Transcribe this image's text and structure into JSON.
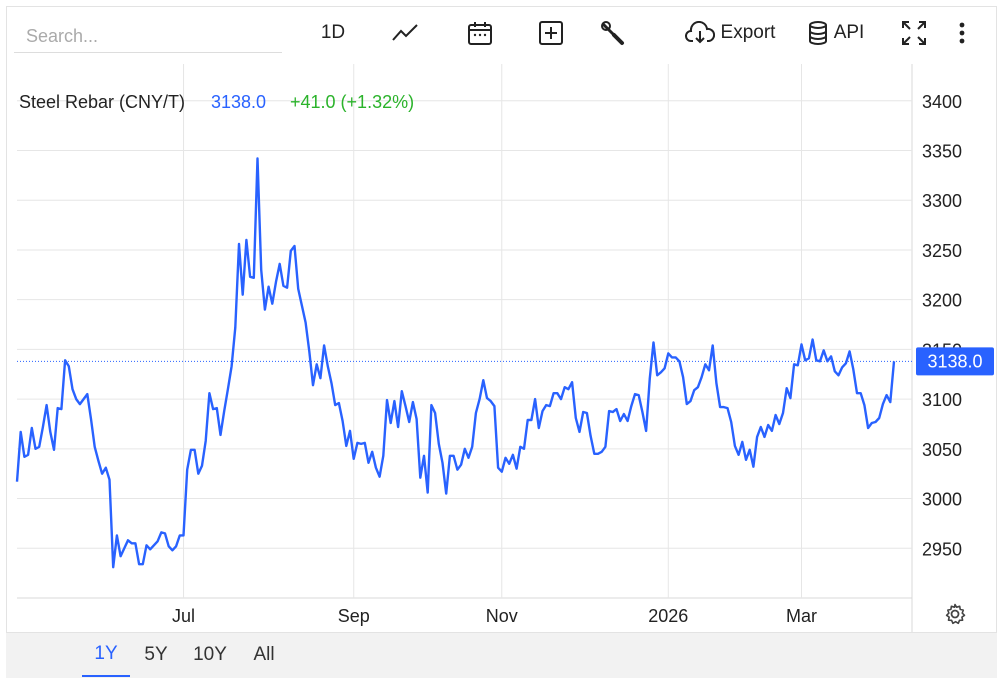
{
  "search": {
    "placeholder": "Search..."
  },
  "toolbar": {
    "interval_label": "1D",
    "export_label": "Export",
    "api_label": "API",
    "icons": [
      "line-chart-icon",
      "calendar-icon",
      "compare-add-icon",
      "wrench-icon",
      "cloud-download-icon",
      "database-icon",
      "fullscreen-icon",
      "more-vertical-icon"
    ]
  },
  "legend": {
    "symbol": "Steel Rebar (CNY/T)",
    "last": "3138.0",
    "change": "+41.0 (+1.32%)"
  },
  "price_tag": "3138.0",
  "ranges": [
    "1Y",
    "5Y",
    "10Y",
    "All"
  ],
  "active_range": "1Y",
  "colors": {
    "line": "#2962ff",
    "up": "#2bb32b",
    "grid": "#e6e6e6"
  },
  "chart_data": {
    "type": "line",
    "series": [
      {
        "name": "Steel Rebar (CNY/T)",
        "values": [
          3017,
          3067,
          3042,
          3044,
          3071,
          3050,
          3052,
          3072,
          3094,
          3067,
          3049,
          3091,
          3090,
          3139,
          3133,
          3110,
          3100,
          3095,
          3100,
          3105,
          3080,
          3052,
          3038,
          3025,
          3031,
          3019,
          2931,
          2963,
          2942,
          2950,
          2958,
          2955,
          2955,
          2934,
          2934,
          2953,
          2949,
          2953,
          2957,
          2966,
          2965,
          2952,
          2948,
          2952,
          2963,
          2963,
          3029,
          3049,
          3049,
          3025,
          3033,
          3058,
          3106,
          3090,
          3091,
          3064,
          3088,
          3110,
          3133,
          3172,
          3256,
          3205,
          3260,
          3223,
          3222,
          3342,
          3230,
          3190,
          3213,
          3196,
          3218,
          3236,
          3214,
          3212,
          3249,
          3254,
          3211,
          3194,
          3177,
          3148,
          3114,
          3135,
          3121,
          3154,
          3133,
          3116,
          3094,
          3096,
          3078,
          3053,
          3068,
          3040,
          3056,
          3055,
          3056,
          3036,
          3047,
          3031,
          3022,
          3043,
          3099,
          3076,
          3098,
          3072,
          3108,
          3093,
          3077,
          3097,
          3080,
          3021,
          3043,
          3006,
          3094,
          3086,
          3055,
          3036,
          3005,
          3043,
          3043,
          3029,
          3034,
          3050,
          3041,
          3052,
          3086,
          3100,
          3119,
          3101,
          3098,
          3093,
          3031,
          3027,
          3041,
          3035,
          3044,
          3030,
          3052,
          3050,
          3079,
          3079,
          3100,
          3071,
          3088,
          3094,
          3093,
          3106,
          3106,
          3100,
          3112,
          3110,
          3117,
          3081,
          3067,
          3087,
          3086,
          3063,
          3045,
          3045,
          3047,
          3052,
          3088,
          3087,
          3090,
          3078,
          3085,
          3078,
          3093,
          3105,
          3104,
          3087,
          3068,
          3121,
          3157,
          3124,
          3127,
          3131,
          3146,
          3142,
          3142,
          3138,
          3122,
          3095,
          3098,
          3109,
          3112,
          3122,
          3135,
          3129,
          3154,
          3116,
          3092,
          3092,
          3091,
          3077,
          3053,
          3044,
          3057,
          3039,
          3049,
          3032,
          3062,
          3072,
          3062,
          3074,
          3068,
          3084,
          3075,
          3086,
          3111,
          3101,
          3135,
          3134,
          3155,
          3139,
          3141,
          3160,
          3139,
          3138,
          3149,
          3138,
          3143,
          3128,
          3124,
          3132,
          3136,
          3148,
          3130,
          3106,
          3106,
          3094,
          3071,
          3076,
          3077,
          3081,
          3095,
          3104,
          3097,
          3138
        ]
      }
    ],
    "x_ticks": [
      "Jul",
      "Sep",
      "Nov",
      "2026",
      "Mar"
    ],
    "x_tick_index": [
      45,
      91,
      131,
      176,
      212
    ],
    "ylim": [
      2900,
      3437
    ],
    "y_ticks": [
      2950,
      3000,
      3050,
      3100,
      3150,
      3200,
      3250,
      3300,
      3350,
      3400
    ],
    "last_value": 3138,
    "grid": true
  }
}
